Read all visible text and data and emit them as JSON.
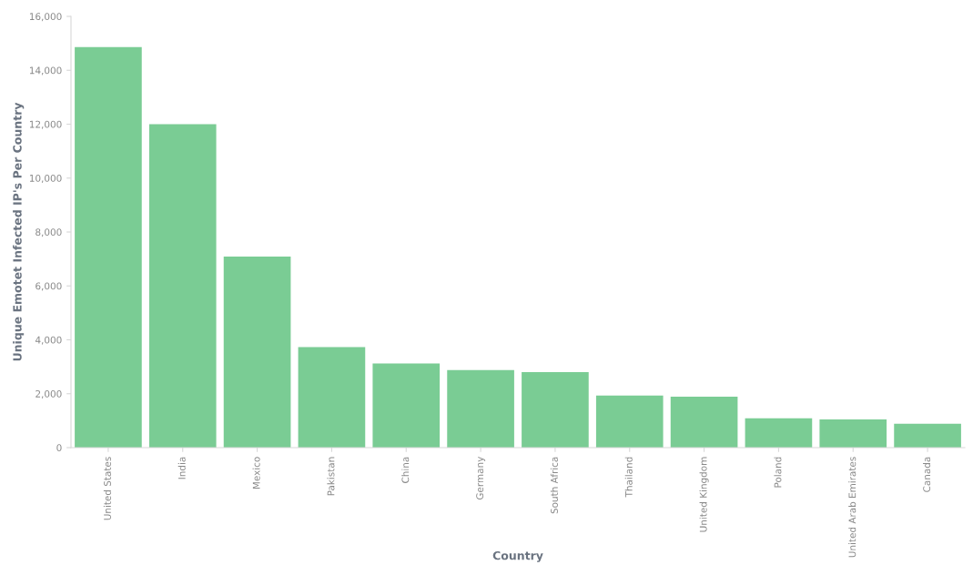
{
  "chart_data": {
    "type": "bar",
    "xlabel": "Country",
    "ylabel": "Unique Emotet Infected IP's Per Country",
    "categories": [
      "United States",
      "India",
      "Mexico",
      "Pakistan",
      "China",
      "Germany",
      "South Africa",
      "Thailand",
      "United Kingdom",
      "Poland",
      "United Arab Emirates",
      "Canada"
    ],
    "values": [
      14860,
      12000,
      7090,
      3730,
      3120,
      2880,
      2800,
      1930,
      1890,
      1090,
      1050,
      890
    ],
    "color": "#7acc94",
    "ylim": [
      0,
      16000
    ],
    "yticks": [
      0,
      {
        "value": 2000,
        "label": "2,000"
      },
      {
        "value": 4000,
        "label": "4,000"
      },
      {
        "value": 6000,
        "label": "6,000"
      },
      {
        "value": 8000,
        "label": "8,000"
      },
      {
        "value": 10000,
        "label": "10,000"
      },
      {
        "value": 12000,
        "label": "12,000"
      },
      {
        "value": 14000,
        "label": "14,000"
      },
      {
        "value": 16000,
        "label": "16,000"
      }
    ],
    "grid": false,
    "legend": false
  }
}
